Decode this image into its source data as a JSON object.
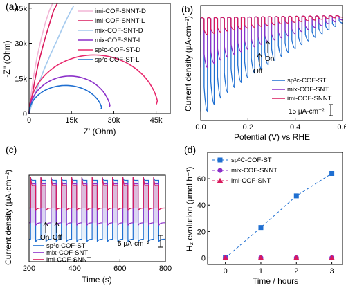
{
  "panels": [
    {
      "label": "(a)",
      "chart_data": {
        "type": "line",
        "xlabel": "Z' (Ohm)",
        "ylabel": "-Z'' (Ohm)",
        "xlim": [
          0,
          50000
        ],
        "ylim": [
          0,
          47000
        ],
        "xticks": [
          "0",
          "15k",
          "30k",
          "45k"
        ],
        "yticks": [
          "0",
          "15k",
          "30k",
          "45k"
        ],
        "xtick_values": [
          0,
          15000,
          30000,
          45000
        ],
        "ytick_values": [
          0,
          15000,
          30000,
          45000
        ],
        "legend_position": "top-right",
        "series": [
          {
            "name": "imi-COF-SNNT-D",
            "color": "#f2b6d6",
            "kind": "line",
            "x": [
              0,
              600,
              1500,
              2800,
              4300,
              5800,
              7200,
              8300
            ],
            "y": [
              0,
              7000,
              15000,
              24000,
              32000,
              39000,
              44000,
              47000
            ]
          },
          {
            "name": "imi-COF-SNNT-L",
            "color": "#d9195c",
            "kind": "line",
            "x": [
              0,
              1000,
              2000,
              3200,
              4600,
              6000,
              7400,
              8700,
              10000
            ],
            "y": [
              0,
              7000,
              14000,
              21000,
              27500,
              33500,
              39000,
              44000,
              47000
            ]
          },
          {
            "name": "mix-COF-SNT-D",
            "color": "#a3c9ee",
            "kind": "line",
            "x": [
              0,
              1500,
              3200,
              5200,
              7500,
              9800,
              12000,
              14200,
              15800
            ],
            "y": [
              0,
              6000,
              12000,
              18500,
              25000,
              31000,
              37000,
              42500,
              46000
            ]
          },
          {
            "name": "mix-COF-SNT-L",
            "color": "#8b2fc9",
            "kind": "arc",
            "x0": 0,
            "x1": 29000,
            "peak": 16000,
            "end_drop": 5000
          },
          {
            "name": "sp2c-COF-ST-D",
            "color": "#e8296d",
            "kind": "arc",
            "x0": 0,
            "x1": 46000,
            "peak": 25000,
            "end_drop": 10000
          },
          {
            "name": "sp2c-COF-ST-L",
            "color": "#1f6fd1",
            "kind": "arc",
            "x0": 0,
            "x1": 26000,
            "peak": 12000,
            "end_drop": 4500
          }
        ]
      },
      "legend": [
        {
          "text": "imi-COF-SNNT-D",
          "color": "#f2b6d6"
        },
        {
          "text": "imi-COF-SNNT-L",
          "color": "#d9195c"
        },
        {
          "text": "mix-COF-SNT-D",
          "color": "#a3c9ee"
        },
        {
          "text": "mix-COF-SNT-L",
          "color": "#8b2fc9"
        },
        {
          "text": "sp²c-COF-ST-D",
          "color": "#e8296d"
        },
        {
          "text": "sp²c-COF-ST-L",
          "color": "#1f6fd1"
        }
      ]
    },
    {
      "label": "(b)",
      "chart_data": {
        "type": "line",
        "xlabel": "Potential (V) vs RHE",
        "ylabel": "Current density (μA·cm⁻²)",
        "xlim": [
          0,
          0.6
        ],
        "xticks": [
          "0.0",
          "0.2",
          "0.4",
          "0.6"
        ],
        "xtick_values": [
          0,
          0.2,
          0.4,
          0.6
        ],
        "grid": false,
        "legend_position": "bottom-right",
        "series": [
          {
            "name": "sp²c-COF-ST",
            "color": "#1f6fd1",
            "start_gap": 0.92,
            "end_gap": 0.06,
            "light_gain": 0.5
          },
          {
            "name": "mix-COF-SNT",
            "color": "#8b2fc9",
            "start_gap": 0.5,
            "end_gap": 0.04,
            "light_gain": 0.3
          },
          {
            "name": "imi-COF-SNNT",
            "color": "#d9195c",
            "start_gap": 0.18,
            "end_gap": 0.02,
            "light_gain": 0.08
          }
        ],
        "annotations": {
          "on": "On",
          "off": "Off",
          "scale_bar": "15 μA·cm⁻²"
        }
      }
    },
    {
      "label": "(c)",
      "chart_data": {
        "type": "line",
        "xlabel": "Time (s)",
        "ylabel": "Current density (μA·cm⁻²)",
        "xlim": [
          200,
          800
        ],
        "xticks": [
          "200",
          "400",
          "600",
          "800"
        ],
        "xtick_values": [
          200,
          400,
          600,
          800
        ],
        "cycles": 13,
        "legend_position": "bottom-left",
        "series": [
          {
            "name": "sp²c-COF-ST",
            "color": "#1f6fd1",
            "light": 0.06,
            "dark": 0.74,
            "peak": 0.035
          },
          {
            "name": "mix-COF-SNT",
            "color": "#8b2fc9",
            "light": 0.1,
            "dark": 0.55,
            "peak": 0.07
          },
          {
            "name": "imi-COF-SNNT",
            "color": "#d9195c",
            "light": 0.12,
            "dark": 0.38,
            "peak": 0.1
          }
        ],
        "annotations": {
          "on": "On",
          "off": "Off",
          "scale_bar": "5 μA·cm⁻²"
        }
      }
    },
    {
      "label": "(d)",
      "chart_data": {
        "type": "scatter",
        "xlabel": "Time / hours",
        "ylabel": "H₂ evolution (μmol h⁻¹)",
        "xlim": [
          -0.5,
          3.3
        ],
        "ylim": [
          -5,
          80
        ],
        "xticks": [
          "0",
          "1",
          "2",
          "3"
        ],
        "yticks": [
          "0",
          "20",
          "40",
          "60"
        ],
        "xtick_values": [
          0,
          1,
          2,
          3
        ],
        "ytick_values": [
          0,
          20,
          40,
          60
        ],
        "legend_position": "top-left",
        "series": [
          {
            "name": "sp²C-COF-ST",
            "color": "#1f6fd1",
            "marker": "square",
            "x": [
              0,
              1,
              2,
              3
            ],
            "y": [
              0,
              23,
              47,
              64
            ]
          },
          {
            "name": "mix-COF-SNNT",
            "color": "#8b2fc9",
            "marker": "circle",
            "x": [
              0,
              1,
              2,
              3
            ],
            "y": [
              0,
              0,
              0,
              0
            ]
          },
          {
            "name": "imi-COF-SNT",
            "color": "#d9195c",
            "marker": "triangle",
            "x": [
              0,
              1,
              2,
              3
            ],
            "y": [
              0,
              0,
              0,
              0
            ]
          }
        ]
      }
    }
  ]
}
